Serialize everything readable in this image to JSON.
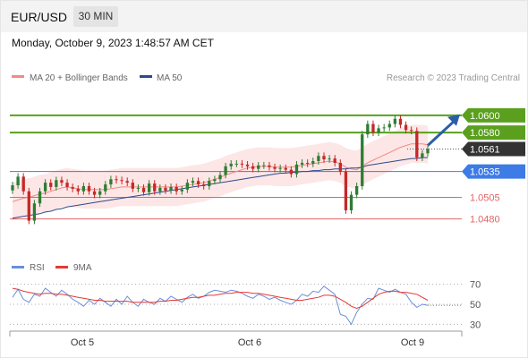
{
  "header": {
    "symbol": "EUR/USD",
    "timeframe": "30 MIN",
    "timestamp": "Monday, October 9, 2023 1:48:57 AM CET"
  },
  "legend": {
    "ma20": "MA 20 + Bollinger Bands",
    "ma50": "MA 50",
    "ma20_color": "#f28b82",
    "ma50_color": "#2c4a8a"
  },
  "credit": "Research © 2023 Trading Central",
  "levels": [
    {
      "label": "1.0600",
      "value": 1.06,
      "style": "resistance"
    },
    {
      "label": "1.0580",
      "value": 1.058,
      "style": "resistance"
    },
    {
      "label": "1.0561",
      "value": 1.0561,
      "style": "last"
    },
    {
      "label": "1.0535",
      "value": 1.0535,
      "style": "pivot"
    },
    {
      "label": "1.0505",
      "value": 1.0505,
      "style": "support"
    },
    {
      "label": "1.0480",
      "value": 1.048,
      "style": "support"
    }
  ],
  "colors": {
    "resistance": "#5aa01e",
    "last": "#333333",
    "pivot": "#3d7be6",
    "support": "#e06565",
    "candle_up": "#2e7d32",
    "candle_down": "#c62828",
    "band_fill": "#fde2e2",
    "rsi": "#6a8fd8",
    "rsi_ma": "#e53935",
    "arrow": "#2c5ea8"
  },
  "chart_data": [
    {
      "type": "candlestick",
      "title": "",
      "x_ticks": [
        "Oct 5",
        "Oct 6",
        "Oct 9"
      ],
      "y_range": [
        1.0462,
        1.0632
      ],
      "forecast_direction": "up",
      "close_values": [
        1.0519,
        1.0529,
        1.0512,
        1.0478,
        1.0498,
        1.0512,
        1.0522,
        1.0517,
        1.0525,
        1.0522,
        1.0517,
        1.0515,
        1.0512,
        1.0518,
        1.0512,
        1.0508,
        1.0512,
        1.052,
        1.0526,
        1.0525,
        1.0524,
        1.0522,
        1.0515,
        1.0516,
        1.0511,
        1.0521,
        1.0512,
        1.0516,
        1.0513,
        1.0517,
        1.0512,
        1.0514,
        1.0522,
        1.0524,
        1.052,
        1.0518,
        1.0524,
        1.0526,
        1.0531,
        1.0541,
        1.0544,
        1.0544,
        1.0543,
        1.0541,
        1.0538,
        1.0542,
        1.0542,
        1.054,
        1.0538,
        1.0539,
        1.0537,
        1.0532,
        1.0543,
        1.0545,
        1.0544,
        1.0547,
        1.0553,
        1.0549,
        1.055,
        1.0545,
        1.0535,
        1.049,
        1.0508,
        1.0518,
        1.0578,
        1.059,
        1.058,
        1.0585,
        1.0586,
        1.059,
        1.0596,
        1.0589,
        1.0583,
        1.0582,
        1.0551,
        1.0556,
        1.0561
      ],
      "ma20_values": [
        1.05,
        1.0502,
        1.0504,
        1.0505,
        1.0507,
        1.0509,
        1.051,
        1.0512,
        1.0514,
        1.0516,
        1.0517,
        1.0516,
        1.0515,
        1.0514,
        1.0514,
        1.0514,
        1.0514,
        1.0514,
        1.0515,
        1.0516,
        1.0517,
        1.0517,
        1.0517,
        1.0517,
        1.0517,
        1.0517,
        1.0517,
        1.0517,
        1.0517,
        1.0517,
        1.0517,
        1.0518,
        1.0519,
        1.052,
        1.0521,
        1.0522,
        1.0524,
        1.0526,
        1.0528,
        1.0531,
        1.0533,
        1.0535,
        1.0537,
        1.0539,
        1.054,
        1.0541,
        1.0541,
        1.0541,
        1.054,
        1.054,
        1.054,
        1.054,
        1.0541,
        1.0542,
        1.0543,
        1.0544,
        1.0545,
        1.0546,
        1.0547,
        1.0546,
        1.0544,
        1.054,
        1.0538,
        1.0537,
        1.0541,
        1.0545,
        1.0548,
        1.0551,
        1.0554,
        1.0557,
        1.056,
        1.0563,
        1.0565,
        1.0567,
        1.0567,
        1.0567,
        1.0566
      ],
      "ma50_values": [
        1.0481,
        1.0482,
        1.0483,
        1.0484,
        1.0485,
        1.0486,
        1.0488,
        1.0489,
        1.0491,
        1.0492,
        1.0494,
        1.0495,
        1.0496,
        1.0497,
        1.0498,
        1.0499,
        1.05,
        1.0501,
        1.0502,
        1.0503,
        1.0504,
        1.0505,
        1.0506,
        1.0507,
        1.0508,
        1.0509,
        1.051,
        1.0511,
        1.0512,
        1.0513,
        1.0514,
        1.0515,
        1.0516,
        1.0517,
        1.0518,
        1.0519,
        1.052,
        1.0521,
        1.0522,
        1.0523,
        1.0524,
        1.0525,
        1.0526,
        1.0527,
        1.0528,
        1.0529,
        1.053,
        1.0531,
        1.0532,
        1.0533,
        1.0533,
        1.0534,
        1.0534,
        1.0535,
        1.0535,
        1.0536,
        1.0536,
        1.0537,
        1.0537,
        1.0538,
        1.0538,
        1.0538,
        1.0539,
        1.0539,
        1.054,
        1.0542,
        1.0543,
        1.0544,
        1.0545,
        1.0546,
        1.0547,
        1.0548,
        1.0549,
        1.055,
        1.055,
        1.0551,
        1.0551
      ],
      "band_width": 0.0022
    },
    {
      "type": "line",
      "title": "",
      "series_names": [
        "RSI",
        "9MA"
      ],
      "y_ticks": [
        70,
        50,
        30
      ],
      "y_range": [
        25,
        75
      ],
      "rsi_values": [
        57,
        65,
        55,
        52,
        60,
        58,
        66,
        62,
        58,
        64,
        60,
        55,
        52,
        48,
        54,
        50,
        56,
        52,
        48,
        55,
        50,
        58,
        52,
        48,
        55,
        52,
        50,
        56,
        53,
        58,
        55,
        52,
        57,
        60,
        56,
        58,
        62,
        64,
        63,
        62,
        64,
        63,
        61,
        58,
        56,
        60,
        58,
        55,
        57,
        54,
        52,
        50,
        54,
        60,
        58,
        63,
        62,
        68,
        64,
        60,
        40,
        38,
        30,
        42,
        50,
        56,
        55,
        66,
        64,
        62,
        65,
        62,
        60,
        52,
        47,
        50,
        49
      ],
      "rsi_ma_values": [
        66,
        65,
        63,
        62,
        61,
        60,
        61,
        61,
        60,
        60,
        59,
        58,
        57,
        56,
        55,
        54,
        54,
        53,
        53,
        53,
        53,
        53,
        52,
        52,
        52,
        52,
        52,
        53,
        53,
        54,
        54,
        55,
        56,
        57,
        57,
        58,
        59,
        59,
        60,
        61,
        61,
        62,
        62,
        62,
        61,
        61,
        60,
        59,
        58,
        57,
        56,
        55,
        54,
        54,
        55,
        56,
        57,
        59,
        59,
        58,
        55,
        52,
        48,
        46,
        48,
        52,
        56,
        60,
        62,
        63,
        63,
        62,
        62,
        61,
        60,
        57,
        54
      ]
    }
  ]
}
